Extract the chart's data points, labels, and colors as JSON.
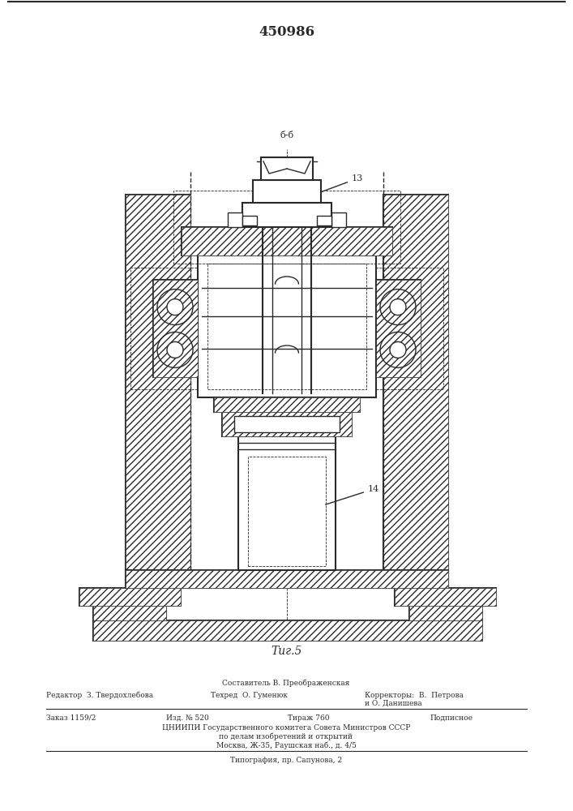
{
  "title": "450986",
  "fig_label": "Τиг.5",
  "label_13": "13",
  "label_14": "14",
  "label_bb": "б-б",
  "footer_line0": "Составитель В. Преображенская",
  "footer_line1a": "Редактор  З. Твердохлебова",
  "footer_line1b": "Техред  О. Гуменюк",
  "footer_line1c": "Корректоры:  В.  Петрова",
  "footer_line1d": "и О. Данишева",
  "footer_line2a": "Заказ 1159/2",
  "footer_line2b": "Изд. № 520",
  "footer_line2c": "Тираж 760",
  "footer_line2d": "Подписное",
  "footer_line3": "ЦНИИПИ Государственного комитега Совета Министров СССР",
  "footer_line4": "по делам изобретений и открытий",
  "footer_line5": "Москва, Ж-35, Раушская наб., д. 4/5",
  "footer_line6": "Типография, пр. Сапунова, 2",
  "bg_color": "#ffffff",
  "line_color": "#2a2a2a"
}
